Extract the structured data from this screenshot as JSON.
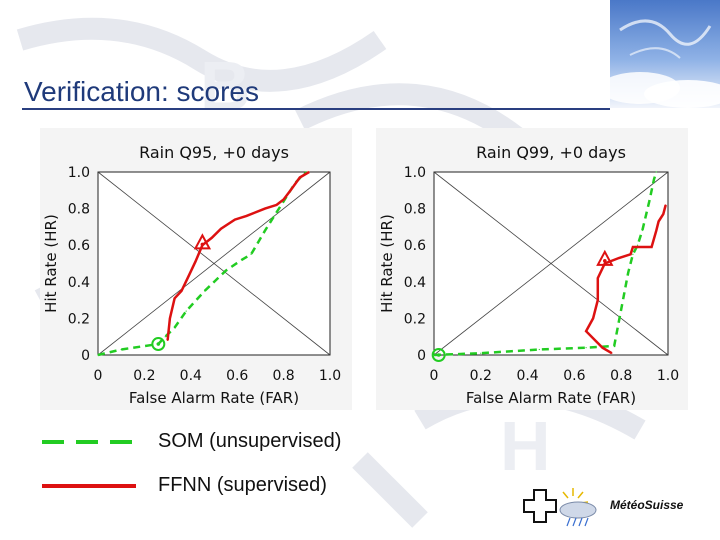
{
  "slide": {
    "title": "Verification: scores",
    "colors": {
      "title": "#1f3a7a",
      "som": "#22cc22",
      "ffnn": "#dd1111"
    }
  },
  "legend": {
    "items": [
      {
        "label": "SOM (unsupervised)",
        "style": "dashed",
        "color": "#22cc22"
      },
      {
        "label": "FFNN (supervised)",
        "style": "solid",
        "color": "#dd1111"
      }
    ]
  },
  "logo": {
    "text": "MétéoSuisse"
  },
  "chart_data": [
    {
      "type": "line",
      "title": "Rain Q95, +0 days",
      "xlabel": "False Alarm Rate (FAR)",
      "ylabel": "Hit Rate (HR)",
      "xlim": [
        0,
        1
      ],
      "ylim": [
        0,
        1
      ],
      "xticks": [
        "0",
        "0.2",
        "0.4",
        "0.6",
        "0.8",
        "1.0"
      ],
      "yticks": [
        "0",
        "0.2",
        "0.4",
        "0.6",
        "0.8",
        "1.0"
      ],
      "series": [
        {
          "style": "dashed",
          "color": "#22cc22",
          "points": [
            [
              0,
              0
            ],
            [
              0.1,
              0.03
            ],
            [
              0.26,
              0.06
            ],
            [
              0.29,
              0.1
            ],
            [
              0.33,
              0.15
            ],
            [
              0.38,
              0.24
            ],
            [
              0.46,
              0.35
            ],
            [
              0.55,
              0.46
            ],
            [
              0.62,
              0.52
            ],
            [
              0.66,
              0.55
            ],
            [
              0.72,
              0.68
            ],
            [
              0.76,
              0.76
            ],
            [
              0.8,
              0.84
            ],
            [
              0.85,
              0.94
            ],
            [
              0.88,
              0.98
            ],
            [
              0.9,
              1.0
            ]
          ],
          "marker": {
            "shape": "circle",
            "x": 0.26,
            "y": 0.06
          }
        },
        {
          "style": "solid",
          "color": "#dd1111",
          "points": [
            [
              0.3,
              0.08
            ],
            [
              0.31,
              0.2
            ],
            [
              0.33,
              0.31
            ],
            [
              0.36,
              0.35
            ],
            [
              0.39,
              0.43
            ],
            [
              0.42,
              0.51
            ],
            [
              0.45,
              0.6
            ],
            [
              0.49,
              0.64
            ],
            [
              0.53,
              0.69
            ],
            [
              0.59,
              0.74
            ],
            [
              0.64,
              0.76
            ],
            [
              0.72,
              0.8
            ],
            [
              0.77,
              0.82
            ],
            [
              0.8,
              0.85
            ],
            [
              0.83,
              0.9
            ],
            [
              0.87,
              0.97
            ],
            [
              0.91,
              1.0
            ]
          ],
          "marker": {
            "shape": "triangle",
            "x": 0.45,
            "y": 0.61
          }
        }
      ]
    },
    {
      "type": "line",
      "title": "Rain Q99, +0 days",
      "xlabel": "False Alarm Rate (FAR)",
      "ylabel": "Hit Rate (HR)",
      "xlim": [
        0,
        1
      ],
      "ylim": [
        0,
        1
      ],
      "xticks": [
        "0",
        "0.2",
        "0.4",
        "0.6",
        "0.8",
        "1.0"
      ],
      "yticks": [
        "0",
        "0.2",
        "0.4",
        "0.6",
        "0.8",
        "1.0"
      ],
      "series": [
        {
          "style": "dashed",
          "color": "#22cc22",
          "points": [
            [
              0,
              0
            ],
            [
              0.2,
              0.01
            ],
            [
              0.45,
              0.03
            ],
            [
              0.65,
              0.04
            ],
            [
              0.77,
              0.05
            ],
            [
              0.8,
              0.25
            ],
            [
              0.83,
              0.45
            ],
            [
              0.85,
              0.55
            ],
            [
              0.87,
              0.6
            ],
            [
              0.89,
              0.68
            ],
            [
              0.92,
              0.84
            ],
            [
              0.94,
              0.96
            ],
            [
              0.95,
              1.0
            ]
          ],
          "marker": {
            "shape": "circle",
            "x": 0.02,
            "y": 0.0
          }
        },
        {
          "style": "solid",
          "color": "#dd1111",
          "points": [
            [
              0.76,
              0.01
            ],
            [
              0.72,
              0.04
            ],
            [
              0.65,
              0.13
            ],
            [
              0.68,
              0.2
            ],
            [
              0.7,
              0.3
            ],
            [
              0.7,
              0.42
            ],
            [
              0.73,
              0.5
            ],
            [
              0.79,
              0.53
            ],
            [
              0.84,
              0.55
            ],
            [
              0.85,
              0.59
            ],
            [
              0.9,
              0.59
            ],
            [
              0.93,
              0.59
            ],
            [
              0.95,
              0.68
            ],
            [
              0.96,
              0.73
            ],
            [
              0.98,
              0.77
            ],
            [
              0.99,
              0.82
            ]
          ],
          "marker": {
            "shape": "triangle",
            "x": 0.73,
            "y": 0.52
          }
        }
      ]
    }
  ]
}
